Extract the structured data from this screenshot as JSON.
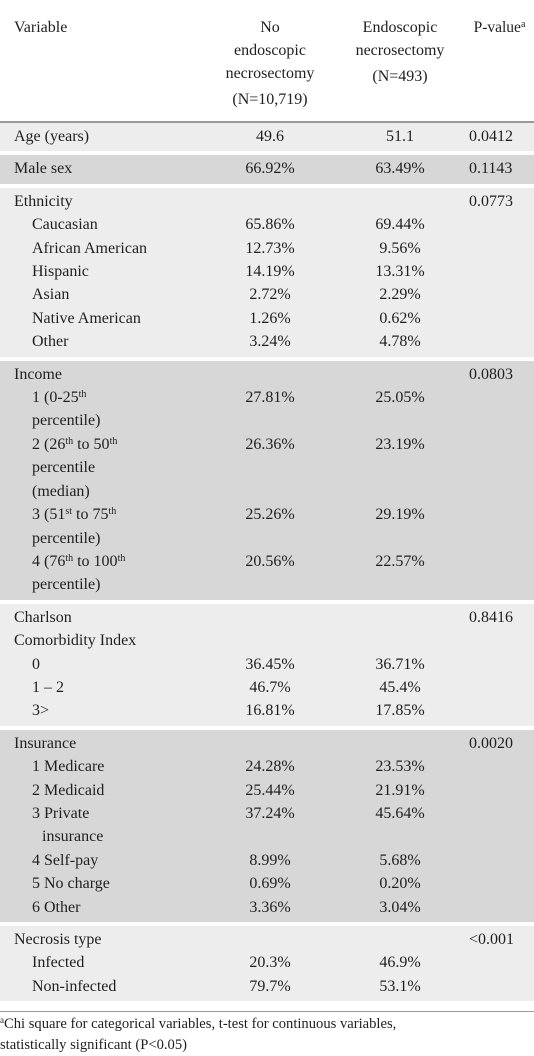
{
  "header": {
    "variable": "Variable",
    "no_endo_line1": "No",
    "no_endo_line2": "endoscopic",
    "no_endo_line3": "necrosectomy",
    "no_endo_n": "(N=10,719)",
    "endo_line1": "Endoscopic",
    "endo_line2": "necrosectomy",
    "endo_n": "(N=493)",
    "pvalue": "P-value",
    "pvalue_sup": "a"
  },
  "age": {
    "label": "Age (years)",
    "no": "49.6",
    "yes": "51.1",
    "p": "0.0412"
  },
  "male": {
    "label": "Male sex",
    "no": "66.92%",
    "yes": "63.49%",
    "p": "0.1143"
  },
  "ethnicity": {
    "label": "Ethnicity",
    "p": "0.0773",
    "rows": [
      {
        "label": "Caucasian",
        "no": "65.86%",
        "yes": "69.44%"
      },
      {
        "label": "African American",
        "no": "12.73%",
        "yes": "9.56%"
      },
      {
        "label": "Hispanic",
        "no": "14.19%",
        "yes": "13.31%"
      },
      {
        "label": "Asian",
        "no": "2.72%",
        "yes": "2.29%"
      },
      {
        "label": "Native American",
        "no": "1.26%",
        "yes": "0.62%"
      },
      {
        "label": "Other",
        "no": "3.24%",
        "yes": "4.78%"
      }
    ]
  },
  "income": {
    "label": "Income",
    "p": "0.0803",
    "r1": {
      "pre": "1 (0-25",
      "sup": "th",
      "line2": "percentile)",
      "no": "27.81%",
      "yes": "25.05%"
    },
    "r2": {
      "pre": "2 (26",
      "sup": "th",
      "post": " to 50",
      "sup2": "th",
      "line2": "percentile",
      "line3": "(median)",
      "no": "26.36%",
      "yes": "23.19%"
    },
    "r3": {
      "pre": "3 (51",
      "sup": "st",
      "post": " to 75",
      "sup2": "th",
      "line2": "percentile)",
      "no": "25.26%",
      "yes": "29.19%"
    },
    "r4": {
      "pre": "4 (76",
      "sup": "th",
      "post": " to 100",
      "sup2": "th",
      "line2": "percentile)",
      "no": "20.56%",
      "yes": "22.57%"
    }
  },
  "charlson": {
    "label1": "Charlson",
    "label2": "Comorbidity Index",
    "p": "0.8416",
    "rows": [
      {
        "label": "0",
        "no": "36.45%",
        "yes": "36.71%"
      },
      {
        "label": "1 – 2",
        "no": "46.7%",
        "yes": "45.4%"
      },
      {
        "label": "3>",
        "no": "16.81%",
        "yes": "17.85%"
      }
    ]
  },
  "insurance": {
    "label": "Insurance",
    "p": "0.0020",
    "rows": [
      {
        "label": "1 Medicare",
        "no": "24.28%",
        "yes": "23.53%"
      },
      {
        "label": "2 Medicaid",
        "no": "25.44%",
        "yes": "21.91%"
      },
      {
        "label": "3 Private",
        "label2": "insurance",
        "no": "37.24%",
        "yes": "45.64%"
      },
      {
        "label": "4 Self-pay",
        "no": "8.99%",
        "yes": "5.68%"
      },
      {
        "label": "5 No charge",
        "no": "0.69%",
        "yes": "0.20%"
      },
      {
        "label": "6 Other",
        "no": "3.36%",
        "yes": "3.04%"
      }
    ]
  },
  "necrosis": {
    "label": "Necrosis type",
    "p": "<0.001",
    "rows": [
      {
        "label": "Infected",
        "no": "20.3%",
        "yes": "46.9%"
      },
      {
        "label": "Non-infected",
        "no": "79.7%",
        "yes": "53.1%"
      }
    ]
  },
  "footnote": {
    "sup": "a",
    "line1": "Chi square for categorical variables, t-test for continuous variables,",
    "line2": "statistically significant (P<0.05)"
  }
}
